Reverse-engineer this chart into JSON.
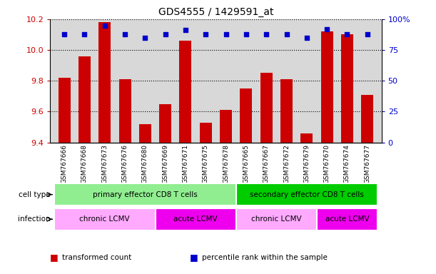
{
  "title": "GDS4555 / 1429591_at",
  "samples": [
    "GSM767666",
    "GSM767668",
    "GSM767673",
    "GSM767676",
    "GSM767680",
    "GSM767669",
    "GSM767671",
    "GSM767675",
    "GSM767678",
    "GSM767665",
    "GSM767667",
    "GSM767672",
    "GSM767679",
    "GSM767670",
    "GSM767674",
    "GSM767677"
  ],
  "transformed_count": [
    9.82,
    9.96,
    10.18,
    9.81,
    9.52,
    9.65,
    10.06,
    9.53,
    9.61,
    9.75,
    9.85,
    9.81,
    9.46,
    10.12,
    10.1,
    9.71
  ],
  "percentile_rank": [
    88,
    88,
    95,
    88,
    85,
    88,
    91,
    88,
    88,
    88,
    88,
    88,
    85,
    92,
    88,
    88
  ],
  "ylim_left": [
    9.4,
    10.2
  ],
  "ylim_right": [
    0,
    100
  ],
  "yticks_left": [
    9.4,
    9.6,
    9.8,
    10.0,
    10.2
  ],
  "yticks_right": [
    0,
    25,
    50,
    75,
    100
  ],
  "bar_color": "#cc0000",
  "dot_color": "#0000cc",
  "cell_type_groups": [
    {
      "label": "primary effector CD8 T cells",
      "start": 0,
      "end": 9,
      "color": "#90ee90"
    },
    {
      "label": "secondary effector CD8 T cells",
      "start": 9,
      "end": 16,
      "color": "#00cc00"
    }
  ],
  "infection_groups": [
    {
      "label": "chronic LCMV",
      "start": 0,
      "end": 5,
      "color": "#ffaaff"
    },
    {
      "label": "acute LCMV",
      "start": 5,
      "end": 9,
      "color": "#ee00ee"
    },
    {
      "label": "chronic LCMV",
      "start": 9,
      "end": 13,
      "color": "#ffaaff"
    },
    {
      "label": "acute LCMV",
      "start": 13,
      "end": 16,
      "color": "#ee00ee"
    }
  ],
  "legend_items": [
    {
      "color": "#cc0000",
      "label": "transformed count"
    },
    {
      "color": "#0000cc",
      "label": "percentile rank within the sample"
    }
  ],
  "background_color": "#ffffff",
  "plot_bg_color": "#d8d8d8",
  "grid_color": "#000000",
  "label_row_color": "#d8d8d8"
}
